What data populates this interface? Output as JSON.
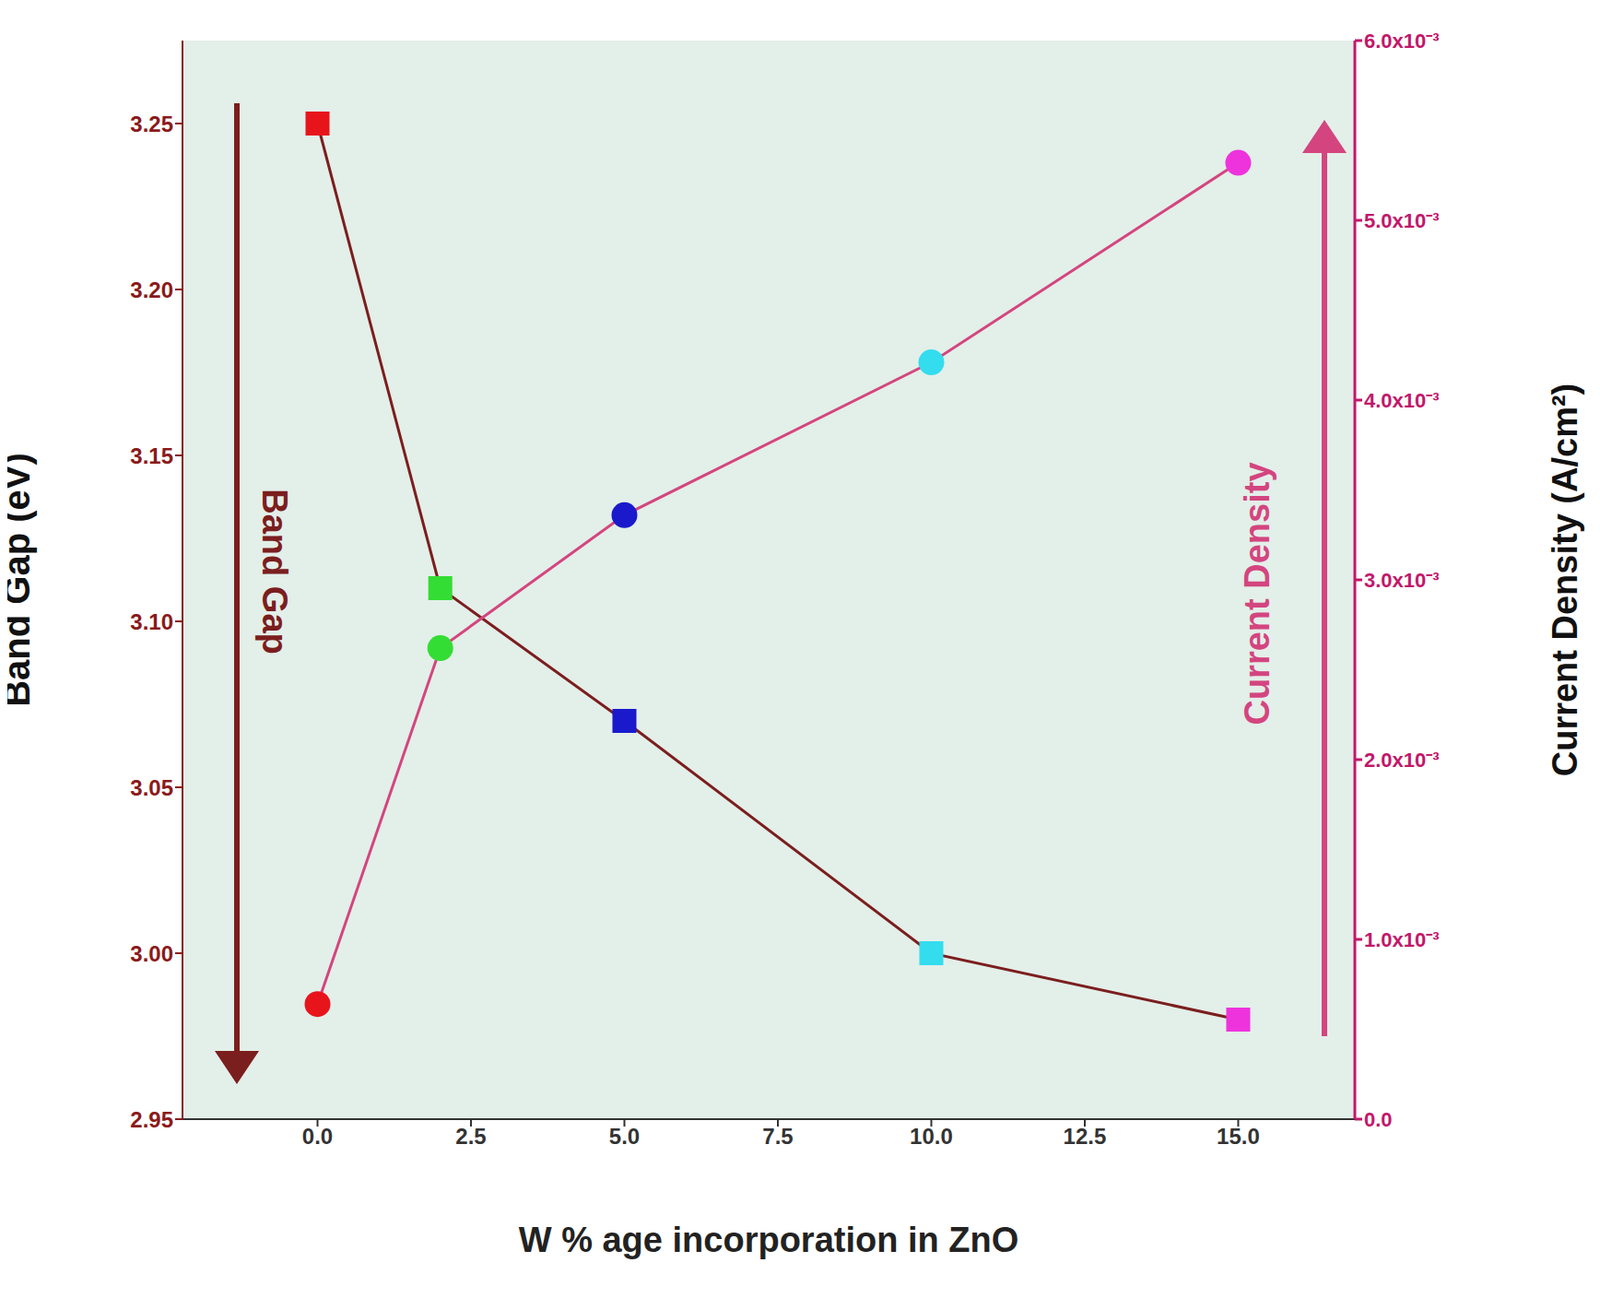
{
  "chart_data": {
    "type": "line",
    "x_label": "W % age incorporation in ZnO",
    "y_label": "Band Gap (eV)",
    "y2_label": "Current Density (A/cm²)",
    "x": [
      0,
      2,
      5,
      10,
      15
    ],
    "xlim": [
      -2.2,
      16.9
    ],
    "xticks": [
      {
        "value": 0,
        "label": "0.0"
      },
      {
        "value": 2.5,
        "label": "2.5"
      },
      {
        "value": 5,
        "label": "5.0"
      },
      {
        "value": 7.5,
        "label": "7.5"
      },
      {
        "value": 10,
        "label": "10.0"
      },
      {
        "value": 12.5,
        "label": "12.5"
      },
      {
        "value": 15,
        "label": "15.0"
      }
    ],
    "ylim": [
      2.95,
      3.275
    ],
    "yticks": [
      2.95,
      {
        "value": 3,
        "label": "3.00"
      },
      3.05,
      {
        "value": 3.1,
        "label": "3.10"
      },
      3.15,
      {
        "value": 3.2,
        "label": "3.20"
      },
      3.25
    ],
    "y2lim": [
      0,
      0.006
    ],
    "y2ticks": [
      {
        "value": 0,
        "label": "0.0"
      },
      {
        "value": 0.001,
        "label": "1.0x10⁻³"
      },
      {
        "value": 0.002,
        "label": "2.0x10⁻³"
      },
      {
        "value": 0.003,
        "label": "3.0x10⁻³"
      },
      {
        "value": 0.004,
        "label": "4.0x10⁻³"
      },
      {
        "value": 0.005,
        "label": "5.0x10⁻³"
      },
      {
        "value": 0.006,
        "label": "6.0x10⁻³"
      }
    ],
    "grid": false,
    "series": [
      {
        "name": "Band Gap",
        "color": "#7b1e1e",
        "marker": "square",
        "colors": [
          "#e8141c",
          "#33dd33",
          "#1a1acc",
          "#33ddee",
          "#ee33dd"
        ],
        "values": [
          3.25,
          3.11,
          3.07,
          3.0,
          2.98
        ]
      },
      {
        "name": "Current Density",
        "axis": "y2",
        "color": "#d4457f",
        "marker": "circle",
        "colors": [
          "#e8141c",
          "#33dd33",
          "#1a1acc",
          "#33ddee",
          "#ee33dd"
        ],
        "values": [
          0.00064,
          0.00262,
          0.00336,
          0.00421,
          0.00532
        ]
      }
    ]
  }
}
